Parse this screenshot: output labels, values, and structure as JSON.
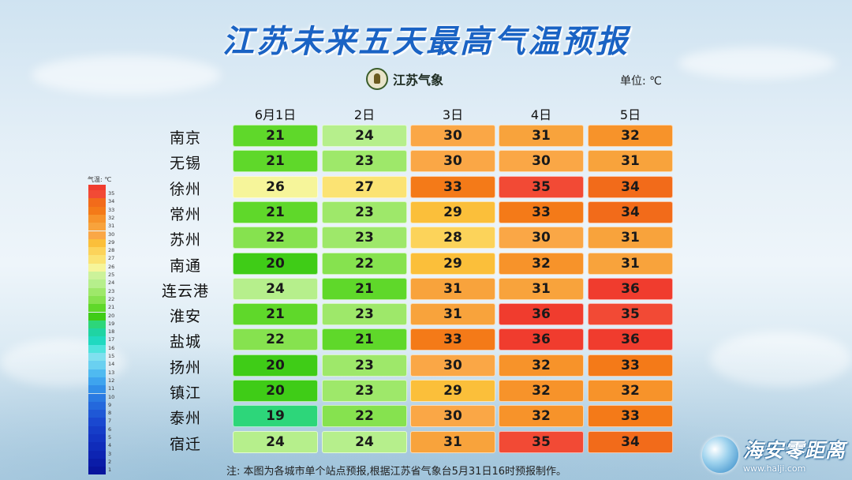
{
  "title": "江苏未来五天最高气温预报",
  "logo": {
    "text": "江苏气象"
  },
  "unit_label": "单位: ℃",
  "legend_title": "气温: ℃",
  "note": "注: 本图为各城市单个站点预报,根据江苏省气象台5月31日16时预报制作。",
  "brand": {
    "name": "海安零距离",
    "url": "www.halji.com"
  },
  "chart_data": {
    "type": "table",
    "title": "江苏未来五天最高气温预报",
    "unit": "℃",
    "columns": [
      "6月1日",
      "2日",
      "3日",
      "4日",
      "5日"
    ],
    "rows": [
      {
        "city": "南京",
        "values": [
          21,
          24,
          30,
          31,
          32
        ]
      },
      {
        "city": "无锡",
        "values": [
          21,
          23,
          30,
          30,
          31
        ]
      },
      {
        "city": "徐州",
        "values": [
          26,
          27,
          33,
          35,
          34
        ]
      },
      {
        "city": "常州",
        "values": [
          21,
          23,
          29,
          33,
          34
        ]
      },
      {
        "city": "苏州",
        "values": [
          22,
          23,
          28,
          30,
          31
        ]
      },
      {
        "city": "南通",
        "values": [
          20,
          22,
          29,
          32,
          31
        ]
      },
      {
        "city": "连云港",
        "values": [
          24,
          21,
          31,
          31,
          36
        ]
      },
      {
        "city": "淮安",
        "values": [
          21,
          23,
          31,
          36,
          35
        ]
      },
      {
        "city": "盐城",
        "values": [
          22,
          21,
          33,
          36,
          36
        ]
      },
      {
        "city": "扬州",
        "values": [
          20,
          23,
          30,
          32,
          33
        ]
      },
      {
        "city": "镇江",
        "values": [
          20,
          23,
          29,
          32,
          32
        ]
      },
      {
        "city": "泰州",
        "values": [
          19,
          22,
          30,
          32,
          33
        ]
      },
      {
        "city": "宿迁",
        "values": [
          24,
          24,
          31,
          35,
          34
        ]
      }
    ],
    "legend_ticks": [
      "35",
      "34",
      "33",
      "32",
      "31",
      "30",
      "29",
      "28",
      "27",
      "26",
      "25",
      "24",
      "23",
      "22",
      "21",
      "20",
      "19",
      "18",
      "17",
      "16",
      "15",
      "14",
      "13",
      "12",
      "11",
      "10",
      "9",
      "8",
      "7",
      "6",
      "5",
      "4",
      "3",
      "2",
      "1"
    ],
    "color_scale": {
      "36": "#f03c2e",
      "35": "#f24a35",
      "34": "#f26b1a",
      "33": "#f47a18",
      "32": "#f7932a",
      "31": "#f8a33c",
      "30": "#faa746",
      "29": "#fbbf3a",
      "28": "#fcd35a",
      "27": "#fbe373",
      "26": "#f6f59a",
      "25": "#ccf29a",
      "24": "#b6ef8c",
      "23": "#9ee86a",
      "22": "#86e24f",
      "21": "#5fd82a",
      "20": "#3fcc17",
      "19": "#2dd67a",
      "18": "#1fd4a3",
      "17": "#20d9c0",
      "16": "#4fe3dd",
      "15": "#7fe0ef",
      "14": "#6ad0f0",
      "13": "#4fbaf0",
      "12": "#3ea4ee",
      "11": "#318ee8",
      "10": "#2a7ae2",
      "9": "#2468dc",
      "8": "#1f58d6",
      "7": "#1a48d0",
      "6": "#163dc8",
      "5": "#1334c2",
      "4": "#102cba",
      "3": "#0d24b2",
      "2": "#0a1ca8",
      "1": "#08159e"
    }
  }
}
